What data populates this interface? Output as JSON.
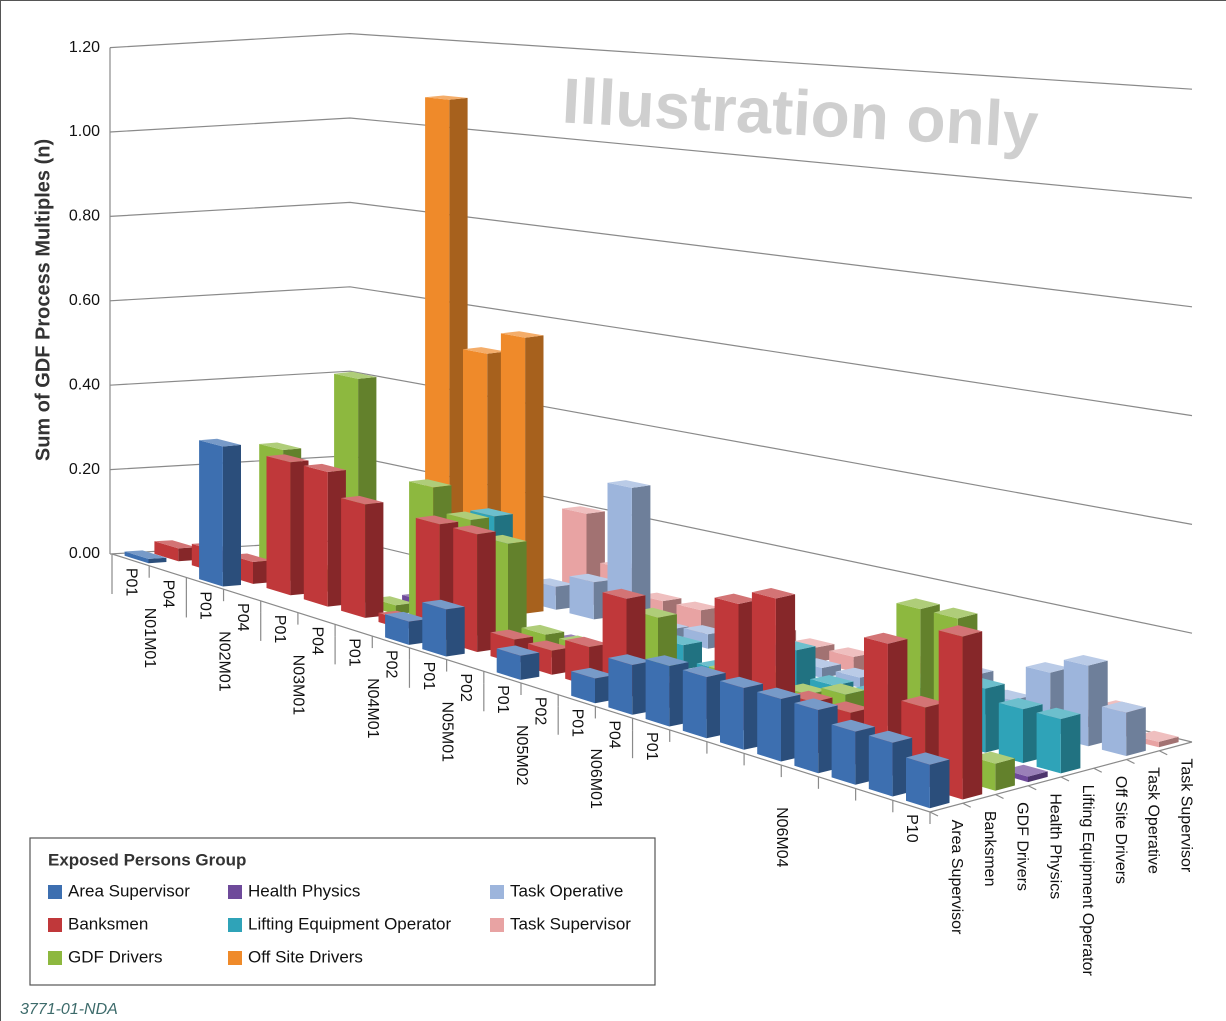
{
  "chart_data": {
    "type": "bar3d",
    "watermark": "Illustration only",
    "y_label": "Sum of GDF Process Multiples (n)",
    "footer": "3771-01-NDA",
    "legend_title": "Exposed Persons Group",
    "legend_position": "lower left",
    "grid": true,
    "ylim": [
      0,
      1.2
    ],
    "yticks": [
      {
        "value": 0,
        "label": "0.00"
      },
      {
        "value": 0.2,
        "label": "0.20"
      },
      {
        "value": 0.4,
        "label": "0.40"
      },
      {
        "value": 0.6,
        "label": "0.60"
      },
      {
        "value": 0.8,
        "label": "0.80"
      },
      {
        "value": 1.0,
        "label": "1.00"
      },
      {
        "value": 1.2,
        "label": "1.20"
      }
    ],
    "categories": [
      "P01",
      "P04",
      "P01",
      "P04",
      "P01",
      "P04",
      "P01",
      "P02",
      "P01",
      "P02",
      "P01",
      "P02",
      "P01",
      "P04",
      "P01",
      null,
      null,
      null,
      null,
      null,
      null,
      "P10"
    ],
    "groups": [
      {
        "label": "N01M01",
        "first": 0,
        "last": 1
      },
      {
        "label": "N02M01",
        "first": 2,
        "last": 3
      },
      {
        "label": "N03M01",
        "first": 4,
        "last": 5
      },
      {
        "label": "N04M01",
        "first": 6,
        "last": 7
      },
      {
        "label": "N05M01",
        "first": 8,
        "last": 9
      },
      {
        "label": "N05M02",
        "first": 10,
        "last": 11
      },
      {
        "label": "N06M01",
        "first": 12,
        "last": 13
      },
      {
        "label": "N06M04",
        "first": 14,
        "last": 21
      }
    ],
    "series": [
      {
        "name": "Area Supervisor",
        "color": "#3d6fb0",
        "values": [
          0.01,
          null,
          0.32,
          null,
          null,
          null,
          null,
          0.05,
          0.1,
          null,
          0.05,
          null,
          0.05,
          0.1,
          0.12,
          0.12,
          0.12,
          0.12,
          0.12,
          0.1,
          0.1,
          0.08
        ]
      },
      {
        "name": "Banksmen",
        "color": "#c0383a",
        "values": [
          0.03,
          0.05,
          0.05,
          0.3,
          0.3,
          0.25,
          0.02,
          0.25,
          0.25,
          0.05,
          0.05,
          0.08,
          0.2,
          0.05,
          0.08,
          0.25,
          0.28,
          0.1,
          0.1,
          0.25,
          0.15,
          0.3
        ]
      },
      {
        "name": "GDF Drivers",
        "color": "#8db83f",
        "values": [
          null,
          null,
          0.3,
          0.05,
          0.5,
          0.02,
          0.3,
          0.25,
          0.22,
          0.05,
          0.05,
          0.03,
          0.15,
          0.02,
          0.08,
          0.1,
          0.08,
          0.1,
          null,
          0.3,
          0.3,
          0.05
        ]
      },
      {
        "name": "Health Physics",
        "color": "#6e4a9a",
        "values": [
          null,
          null,
          null,
          null,
          null,
          0.02,
          null,
          null,
          null,
          0.02,
          0.01,
          0.01,
          0.01,
          0.01,
          0.01,
          0.01,
          null,
          null,
          null,
          null,
          null,
          0.01
        ]
      },
      {
        "name": "Lifting Equipment Operator",
        "color": "#2fa3b8",
        "values": [
          null,
          null,
          null,
          null,
          null,
          null,
          0.22,
          null,
          null,
          null,
          0.05,
          0.05,
          0.02,
          0.05,
          0.1,
          0.05,
          0.05,
          0.08,
          0.08,
          0.12,
          0.1,
          0.1
        ]
      },
      {
        "name": "Off Site Drivers",
        "color": "#ef8a2a",
        "values": [
          null,
          null,
          null,
          null,
          1.1,
          0.55,
          0.6,
          null,
          null,
          null,
          null,
          null,
          null,
          null,
          null,
          null,
          null,
          null,
          null,
          null,
          null,
          null
        ]
      },
      {
        "name": "Task Operative",
        "color": "#9db5dc",
        "values": [
          null,
          null,
          null,
          null,
          null,
          0.02,
          0.05,
          0.08,
          0.3,
          0.02,
          0.03,
          0.03,
          0.02,
          0.02,
          0.02,
          0.1,
          0.05,
          0.08,
          0.05,
          0.12,
          0.15,
          0.08
        ]
      },
      {
        "name": "Task Supervisor",
        "color": "#e8a3a3",
        "values": [
          null,
          null,
          null,
          null,
          null,
          0.02,
          0.2,
          0.1,
          0.05,
          0.05,
          0.05,
          0.04,
          0.03,
          0.03,
          0.02,
          0.05,
          0.02,
          0.02,
          0.02,
          0.02,
          0.05,
          0.01
        ]
      }
    ]
  }
}
